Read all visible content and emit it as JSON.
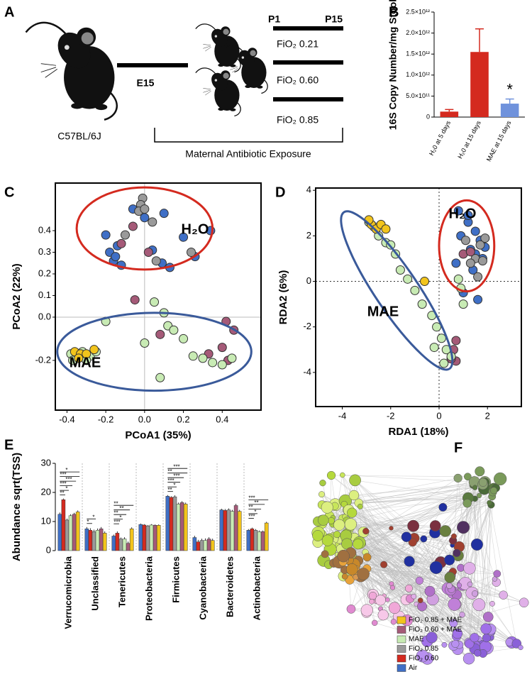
{
  "diagram": {
    "panel": "A",
    "strain": "C57BL/6J",
    "e15": "E15",
    "p1": "P1",
    "p15": "P15",
    "fio2": [
      "FiO₂ 0.21",
      "FiO₂ 0.60",
      "FiO₂ 0.85"
    ],
    "exposure": "Maternal Antibiotic Exposure"
  },
  "network": {
    "panel": "F"
  },
  "chart_data": [
    {
      "type": "bar",
      "panel": "B",
      "ylabel": "16S Copy Number/mg Stool",
      "categories": [
        "H₂0 at 5 days",
        "H₂0 at 15 days",
        "MAE at 15 days"
      ],
      "values": [
        130000000000,
        1550000000000,
        320000000000
      ],
      "errors": [
        50000000000,
        550000000000,
        110000000000
      ],
      "colors": [
        "#d42a1f",
        "#d42a1f",
        "#6f92dc"
      ],
      "annotation": "*",
      "ylim": [
        0,
        2500000000000
      ],
      "yticks": [
        0,
        {
          "value": 500000000000,
          "label": "5.0×10¹¹"
        },
        {
          "value": 1000000000000,
          "label": "1.0×10¹²"
        },
        {
          "value": 1500000000000,
          "label": "1.5×10¹²"
        },
        {
          "value": 2000000000000,
          "label": "2.0×10¹²"
        },
        {
          "value": 2500000000000,
          "label": "2.5×10¹²"
        }
      ]
    },
    {
      "type": "scatter",
      "panel": "C",
      "xlabel": "PCoA1 (35%)",
      "ylabel": "PCoA2 (22%)",
      "xlim": [
        -0.46,
        0.6
      ],
      "ylim": [
        -0.43,
        0.62
      ],
      "zero_lines": "solid",
      "xticks": [
        -0.4,
        -0.2,
        {
          "value": 0,
          "label": "0.0"
        },
        0.2,
        0.4
      ],
      "yticks": [
        -0.2,
        {
          "value": 0,
          "label": "0.0"
        },
        0.1,
        0.2,
        0.3,
        0.4
      ],
      "ellipses": [
        {
          "label": "H₂O",
          "color": "#d42a1f",
          "cx": 0,
          "cy": 0.41,
          "rx": 0.35,
          "ry": 0.19,
          "angle": 0
        },
        {
          "label": "MAE",
          "color": "#3a5a9a",
          "cx": 0.05,
          "cy": -0.16,
          "rx": 0.5,
          "ry": 0.18,
          "angle": 0
        }
      ],
      "series": [
        {
          "color": "#3f6fc6",
          "x": [
            -0.2,
            -0.14,
            -0.06,
            0.0,
            0.04,
            0.1,
            0.2,
            0.26,
            0.34,
            -0.16,
            -0.18,
            -0.12,
            0.09,
            0.13,
            -0.15
          ],
          "y": [
            0.38,
            0.33,
            0.5,
            0.46,
            0.31,
            0.48,
            0.37,
            0.28,
            0.4,
            0.26,
            0.3,
            0.24,
            0.25,
            0.23,
            0.28
          ]
        },
        {
          "color": "#9a9a9a",
          "x": [
            -0.01,
            -0.02,
            -0.03,
            0.0,
            0.04,
            0.24,
            -0.1,
            0.06
          ],
          "y": [
            0.55,
            0.52,
            0.49,
            0.5,
            0.44,
            0.3,
            0.38,
            0.26
          ]
        },
        {
          "color": "#a55a78",
          "x": [
            -0.12,
            -0.06,
            0.02,
            -0.05,
            0.42,
            0.46,
            0.33,
            0.4,
            0.43,
            0.08
          ],
          "y": [
            0.34,
            0.42,
            0.3,
            0.08,
            -0.02,
            -0.06,
            -0.17,
            -0.14,
            -0.2,
            -0.08
          ]
        },
        {
          "color": "#c8ebb4",
          "x": [
            -0.38,
            -0.35,
            -0.32,
            -0.28,
            -0.25,
            -0.3,
            0.05,
            0.1,
            0.12,
            0.2,
            0.25,
            0.3,
            0.35,
            0.4,
            0.45,
            0.0,
            -0.2,
            0.08,
            0.15,
            -0.37
          ],
          "y": [
            -0.17,
            -0.19,
            -0.16,
            -0.18,
            -0.16,
            -0.2,
            0.07,
            0.02,
            -0.04,
            -0.1,
            -0.18,
            -0.19,
            -0.21,
            -0.22,
            -0.19,
            -0.12,
            -0.02,
            -0.28,
            -0.06,
            -0.2
          ]
        },
        {
          "color": "#f2c41c",
          "x": [
            -0.36,
            -0.33,
            -0.26,
            -0.3,
            -0.34
          ],
          "y": [
            -0.16,
            -0.17,
            -0.15,
            -0.17,
            -0.19
          ]
        }
      ]
    },
    {
      "type": "scatter",
      "panel": "D",
      "xlabel": "RDA1 (18%)",
      "ylabel": "RDA2 (6%)",
      "xlim": [
        -5.1,
        3.4
      ],
      "ylim": [
        -5.5,
        4.1
      ],
      "zero_lines": "dotted",
      "xticks": [
        -4,
        -2,
        0,
        2
      ],
      "yticks": [
        -4,
        -2,
        0,
        2,
        4
      ],
      "ellipses": [
        {
          "label": "H₂O",
          "color": "#d42a1f",
          "cx": 1.14,
          "cy": 1.56,
          "rx": 1.14,
          "ry": 2.0,
          "angle": 0
        },
        {
          "label": "MAE",
          "color": "#3a5a9a",
          "cx": -1.75,
          "cy": -0.4,
          "rx": 3.9,
          "ry": 0.94,
          "angle": 56
        }
      ],
      "series": [
        {
          "color": "#3f6fc6",
          "x": [
            0.8,
            1.2,
            1.5,
            1.7,
            0.9,
            1.3,
            1.8,
            0.7,
            1.4,
            1.9,
            1.0,
            1.6,
            1.2,
            1.5
          ],
          "y": [
            3.1,
            2.6,
            2.2,
            1.8,
            2.0,
            1.4,
            1.0,
            0.8,
            0.5,
            1.5,
            -0.5,
            -0.8,
            2.9,
            1.2
          ]
        },
        {
          "color": "#9a9a9a",
          "x": [
            1.9,
            1.7,
            1.5,
            1.8,
            1.3,
            1.1,
            1.6
          ],
          "y": [
            1.9,
            1.6,
            1.0,
            0.9,
            0.8,
            1.8,
            0.2
          ]
        },
        {
          "color": "#a55a78",
          "x": [
            1.0,
            1.3,
            0.7,
            0.6,
            0.7,
            0.5
          ],
          "y": [
            1.2,
            1.3,
            -2.6,
            -3.0,
            -3.5,
            -3.4
          ]
        },
        {
          "color": "#c8ebb4",
          "x": [
            -2.9,
            -2.5,
            -2.2,
            -1.8,
            -1.6,
            -1.3,
            -1.0,
            -0.7,
            -0.3,
            -0.1,
            0.1,
            0.3,
            0.5,
            -0.2,
            0.8,
            0.9,
            1.0,
            -2.7,
            -2.0,
            0.2
          ],
          "y": [
            2.6,
            2.0,
            1.7,
            1.2,
            0.5,
            0.1,
            -0.4,
            -1.0,
            -1.5,
            -2.0,
            -2.5,
            -3.0,
            -3.3,
            -2.9,
            0.1,
            -0.3,
            -1.0,
            2.4,
            1.6,
            -3.6
          ]
        },
        {
          "color": "#f2c41c",
          "x": [
            -2.8,
            -2.6,
            -2.4,
            -2.2,
            -0.6,
            -2.9
          ],
          "y": [
            2.5,
            2.3,
            2.5,
            2.3,
            0.0,
            2.7
          ]
        }
      ]
    },
    {
      "type": "grouped_bar",
      "panel": "E",
      "ylabel": "Abundance sqrt(TSS)",
      "categories": [
        "Verrucomicrobia",
        "Unclassified",
        "Tenericutes",
        "Proteobacteria",
        "Firmicutes",
        "Cyanobacteria",
        "Bacteroidetes",
        "Actinobacteria"
      ],
      "ylim": [
        0,
        30
      ],
      "yticks": [
        0,
        10,
        20,
        30
      ],
      "series": [
        {
          "name": "Air",
          "color": "#3f6fc6",
          "values": [
            12.5,
            7.5,
            5,
            9,
            18.7,
            4.5,
            14,
            7
          ],
          "errors": [
            0.6,
            0.6,
            0.5,
            0.3,
            0.4,
            0.6,
            0.4,
            0.4
          ]
        },
        {
          "name": "FiO₂ 0.60",
          "color": "#d42a1f",
          "values": [
            17.5,
            7,
            6,
            8.8,
            18.3,
            3,
            13.8,
            7.5
          ],
          "errors": [
            0.4,
            0.7,
            0.6,
            0.3,
            0.4,
            0.7,
            0.5,
            0.4
          ]
        },
        {
          "name": "FiO₂ 0.85",
          "color": "#9a9a9a",
          "values": [
            10.5,
            6.5,
            4,
            8.5,
            18.5,
            3.5,
            14,
            7
          ],
          "errors": [
            0.5,
            0.7,
            0.5,
            0.3,
            0.5,
            0.6,
            0.5,
            0.4
          ]
        },
        {
          "name": "MAE",
          "color": "#c8ebb4",
          "values": [
            12,
            7,
            4,
            8.8,
            16,
            3.5,
            13.5,
            6.5
          ],
          "errors": [
            0.5,
            0.6,
            0.6,
            0.3,
            0.5,
            0.7,
            0.5,
            0.4
          ]
        },
        {
          "name": "FiO₂ 0.60 + MAE",
          "color": "#a55a78",
          "values": [
            12.5,
            7.5,
            2.5,
            8.7,
            16.5,
            4,
            15.5,
            6.5
          ],
          "errors": [
            0.5,
            0.6,
            0.6,
            0.3,
            0.5,
            0.6,
            0.6,
            0.4
          ]
        },
        {
          "name": "FiO₂ 0.85 + MAE",
          "color": "#f2c41c",
          "values": [
            13.3,
            6,
            7.5,
            8.7,
            16,
            3.5,
            13.5,
            9.5
          ],
          "errors": [
            0.5,
            0.6,
            0.5,
            0.3,
            0.5,
            0.6,
            0.5,
            0.4
          ]
        }
      ],
      "significance": [
        [
          "**",
          "*",
          "***",
          "***",
          "***",
          "*"
        ],
        [
          "*",
          "*"
        ],
        [
          "***",
          "*",
          "**",
          "**",
          "**"
        ],
        [],
        [
          "**",
          "*",
          "***",
          "***",
          "**",
          "***"
        ],
        [],
        [],
        [
          "***",
          "*",
          "**",
          "**",
          "***"
        ]
      ]
    }
  ]
}
